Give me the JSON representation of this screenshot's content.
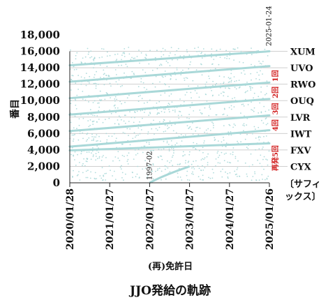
{
  "chart_data": {
    "type": "scatter",
    "title": "JJO発給の軌跡",
    "xlabel": "(再)免許日",
    "ylabel": "番目",
    "x_ticks": [
      "2020/01/28",
      "2021/01/27",
      "2022/01/27",
      "2023/01/27",
      "2024/01/27",
      "2025/01/26"
    ],
    "xlim": [
      "2020-01-28",
      "2025-01-26"
    ],
    "y_ticks": [
      "0",
      "2,000",
      "4,000",
      "6,000",
      "8,000",
      "10,000",
      "12,000",
      "14,000",
      "16,000",
      "18,000"
    ],
    "ylim": [
      0,
      18000
    ],
    "grid": "horizontal",
    "point_color": "#a9d8d8",
    "bands": [
      {
        "suffix": "XUM",
        "y_from": 16000,
        "y_to": 18000
      },
      {
        "suffix": "UVO",
        "y_from": 14000,
        "y_to": 16000
      },
      {
        "suffix": "RWO",
        "y_from": 12000,
        "y_to": 14000
      },
      {
        "suffix": "OUQ",
        "y_from": 10000,
        "y_to": 12000
      },
      {
        "suffix": "LVR",
        "y_from": 8000,
        "y_to": 10000
      },
      {
        "suffix": "IWT",
        "y_from": 6000,
        "y_to": 8000
      },
      {
        "suffix": "FXV",
        "y_from": 4000,
        "y_to": 6000
      },
      {
        "suffix": "CYX",
        "y_from": 2000,
        "y_to": 4000
      }
    ],
    "suffix_header": [
      "〔サフィ",
      "ックス〕"
    ],
    "trend_series": [
      {
        "start": "2020-01-28",
        "end": "2025-01-26",
        "y_start": 14300,
        "y_end": 16000
      },
      {
        "start": "2020-01-28",
        "end": "2025-01-26",
        "y_start": 12300,
        "y_end": 14200
      },
      {
        "start": "2020-01-28",
        "end": "2025-01-26",
        "y_start": 10300,
        "y_end": 12200
      },
      {
        "start": "2020-01-28",
        "end": "2025-01-26",
        "y_start": 8300,
        "y_end": 10200
      },
      {
        "start": "2020-01-28",
        "end": "2025-01-26",
        "y_start": 6300,
        "y_end": 8200
      },
      {
        "start": "2020-01-28",
        "end": "2025-01-26",
        "y_start": 4400,
        "y_end": 6400
      },
      {
        "start": "1997-02-01",
        "end": "2025-01-26",
        "y_start": 0,
        "y_end": 4800
      }
    ],
    "round_labels": [
      {
        "text": "1回",
        "y": 13000
      },
      {
        "text": "2回",
        "y": 11000
      },
      {
        "text": "3回",
        "y": 9000
      },
      {
        "text": "4回",
        "y": 7000
      },
      {
        "text": "再発5回",
        "y": 3000
      }
    ],
    "annotations": [
      {
        "text": "2025-01-24",
        "x": "2025-01-24"
      },
      {
        "text": "1997-02",
        "x": "2022-01-27"
      }
    ]
  }
}
